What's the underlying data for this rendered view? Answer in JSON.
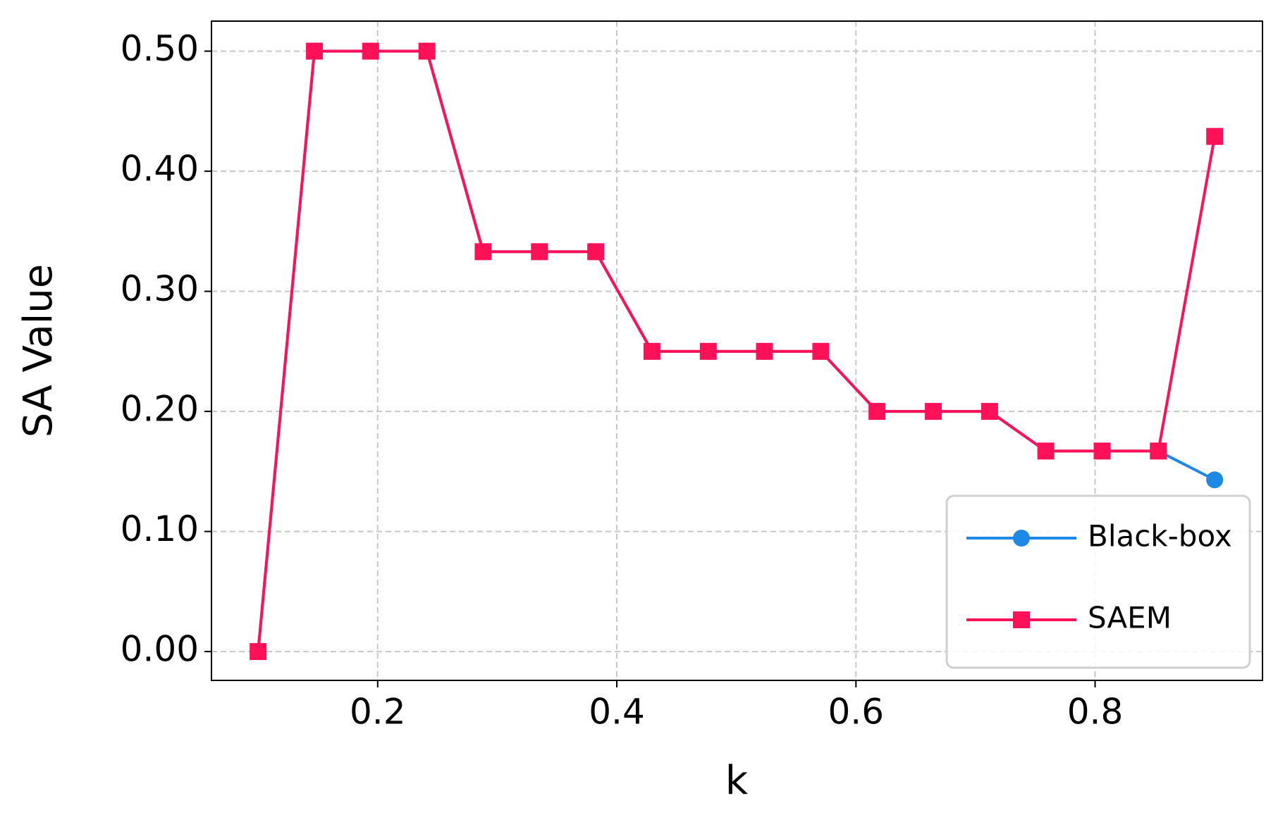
{
  "chart_data": {
    "type": "line",
    "xlabel": "k",
    "ylabel": "SA Value",
    "x": [
      0.1,
      0.1471,
      0.1941,
      0.2412,
      0.2882,
      0.3353,
      0.3824,
      0.4294,
      0.4765,
      0.5235,
      0.5706,
      0.6176,
      0.6647,
      0.7118,
      0.7588,
      0.8059,
      0.8529,
      0.9
    ],
    "series": [
      {
        "name": "Black-box",
        "color": "#1e88e5",
        "marker": "circle",
        "values": [
          0,
          0.5,
          0.5,
          0.5,
          0.333,
          0.333,
          0.333,
          0.25,
          0.25,
          0.25,
          0.25,
          0.2,
          0.2,
          0.2,
          0.167,
          0.167,
          0.167,
          0.143
        ]
      },
      {
        "name": "SAEM",
        "color": "#ff1158",
        "marker": "square",
        "values": [
          0,
          0.5,
          0.5,
          0.5,
          0.333,
          0.333,
          0.333,
          0.25,
          0.25,
          0.25,
          0.25,
          0.2,
          0.2,
          0.2,
          0.167,
          0.167,
          0.167,
          0.429
        ]
      }
    ],
    "xlim": [
      0.061,
      0.94
    ],
    "ylim": [
      -0.024,
      0.525
    ],
    "xticks": [
      0.2,
      0.4,
      0.6,
      0.8
    ],
    "yticks": [
      {
        "value": 0,
        "label": "0.00"
      },
      {
        "value": 0.1,
        "label": "0.10"
      },
      {
        "value": 0.2,
        "label": "0.20"
      },
      {
        "value": 0.3,
        "label": "0.30"
      },
      {
        "value": 0.4,
        "label": "0.40"
      },
      {
        "value": 0.5,
        "label": "0.50"
      }
    ],
    "grid": true,
    "legend": "lower right"
  }
}
